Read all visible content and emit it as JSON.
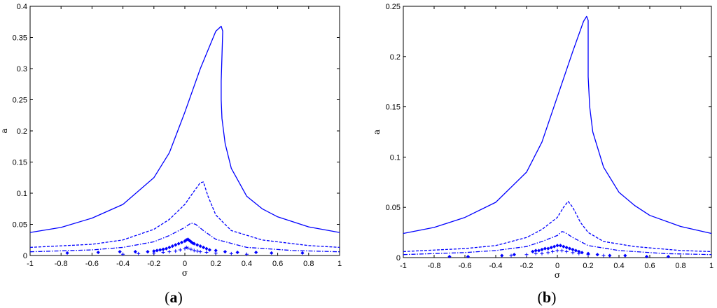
{
  "chart_data": [
    {
      "type": "line",
      "panel_label": "a",
      "xlabel": "σ",
      "ylabel": "a",
      "xlim": [
        -1,
        1
      ],
      "ylim": [
        0,
        0.4
      ],
      "x_ticks": [
        "-1",
        "-0.8",
        "-0.6",
        "-0.4",
        "-0.2",
        "0",
        "0.2",
        "0.4",
        "0.6",
        "0.8",
        "1"
      ],
      "y_ticks": [
        "0",
        "0.05",
        "0.1",
        "0.15",
        "0.2",
        "0.25",
        "0.3",
        "0.35",
        "0.4"
      ],
      "grid": false,
      "color": "#0000ff",
      "series": [
        {
          "style": "solid",
          "points": [
            [
              -1,
              0.037
            ],
            [
              -0.8,
              0.045
            ],
            [
              -0.6,
              0.06
            ],
            [
              -0.4,
              0.082
            ],
            [
              -0.2,
              0.125
            ],
            [
              -0.1,
              0.165
            ],
            [
              0,
              0.23
            ],
            [
              0.1,
              0.3
            ],
            [
              0.2,
              0.36
            ],
            [
              0.235,
              0.368
            ],
            [
              0.245,
              0.36
            ],
            [
              0.24,
              0.32
            ],
            [
              0.235,
              0.28
            ],
            [
              0.235,
              0.25
            ],
            [
              0.24,
              0.22
            ],
            [
              0.26,
              0.18
            ],
            [
              0.3,
              0.14
            ],
            [
              0.4,
              0.095
            ],
            [
              0.5,
              0.075
            ],
            [
              0.6,
              0.062
            ],
            [
              0.8,
              0.046
            ],
            [
              1,
              0.037
            ]
          ]
        },
        {
          "style": "dashed",
          "points": [
            [
              -1,
              0.013
            ],
            [
              -0.6,
              0.018
            ],
            [
              -0.4,
              0.025
            ],
            [
              -0.2,
              0.042
            ],
            [
              -0.1,
              0.058
            ],
            [
              0,
              0.082
            ],
            [
              0.05,
              0.1
            ],
            [
              0.1,
              0.117
            ],
            [
              0.12,
              0.118
            ],
            [
              0.15,
              0.095
            ],
            [
              0.2,
              0.065
            ],
            [
              0.3,
              0.04
            ],
            [
              0.5,
              0.025
            ],
            [
              0.8,
              0.016
            ],
            [
              1,
              0.013
            ]
          ]
        },
        {
          "style": "dashdot",
          "points": [
            [
              -1,
              0.006
            ],
            [
              -0.6,
              0.009
            ],
            [
              -0.4,
              0.013
            ],
            [
              -0.2,
              0.022
            ],
            [
              -0.1,
              0.032
            ],
            [
              0,
              0.045
            ],
            [
              0.04,
              0.052
            ],
            [
              0.07,
              0.05
            ],
            [
              0.12,
              0.04
            ],
            [
              0.2,
              0.026
            ],
            [
              0.4,
              0.013
            ],
            [
              0.7,
              0.008
            ],
            [
              1,
              0.006
            ]
          ]
        },
        {
          "style": "diamond",
          "points": [
            [
              -0.76,
              0.004
            ],
            [
              -0.56,
              0.005
            ],
            [
              -0.42,
              0.006
            ],
            [
              -0.32,
              0.006
            ],
            [
              -0.24,
              0.006
            ],
            [
              -0.2,
              0.007
            ],
            [
              -0.18,
              0.008
            ],
            [
              -0.16,
              0.009
            ],
            [
              -0.14,
              0.01
            ],
            [
              -0.12,
              0.011
            ],
            [
              -0.1,
              0.013
            ],
            [
              -0.08,
              0.015
            ],
            [
              -0.06,
              0.017
            ],
            [
              -0.04,
              0.019
            ],
            [
              -0.02,
              0.021
            ],
            [
              0,
              0.023
            ],
            [
              0.01,
              0.025
            ],
            [
              0.02,
              0.026
            ],
            [
              0.03,
              0.024
            ],
            [
              0.04,
              0.022
            ],
            [
              0.05,
              0.02
            ],
            [
              0.06,
              0.019
            ],
            [
              0.08,
              0.017
            ],
            [
              0.1,
              0.015
            ],
            [
              0.12,
              0.013
            ],
            [
              0.14,
              0.011
            ],
            [
              0.16,
              0.009
            ],
            [
              0.2,
              0.008
            ],
            [
              0.26,
              0.006
            ],
            [
              0.34,
              0.005
            ],
            [
              0.46,
              0.005
            ],
            [
              0.56,
              0.004
            ],
            [
              0.76,
              0.004
            ]
          ]
        },
        {
          "style": "plus",
          "points": [
            [
              -0.4,
              0.002
            ],
            [
              -0.3,
              0.003
            ],
            [
              -0.2,
              0.004
            ],
            [
              -0.14,
              0.005
            ],
            [
              -0.1,
              0.006
            ],
            [
              -0.06,
              0.007
            ],
            [
              -0.03,
              0.009
            ],
            [
              0,
              0.011
            ],
            [
              0.01,
              0.013
            ],
            [
              0.02,
              0.012
            ],
            [
              0.04,
              0.01
            ],
            [
              0.06,
              0.008
            ],
            [
              0.08,
              0.007
            ],
            [
              0.1,
              0.006
            ],
            [
              0.14,
              0.005
            ],
            [
              0.2,
              0.004
            ],
            [
              0.3,
              0.003
            ],
            [
              0.4,
              0.002
            ]
          ]
        }
      ]
    },
    {
      "type": "line",
      "panel_label": "b",
      "xlabel": "σ",
      "ylabel": "a",
      "xlim": [
        -1,
        1
      ],
      "ylim": [
        0,
        0.25
      ],
      "x_ticks": [
        "-1",
        "-0.8",
        "-0.6",
        "-0.4",
        "-0.2",
        "0",
        "0.2",
        "0.4",
        "0.6",
        "0.8",
        "1"
      ],
      "y_ticks": [
        "0",
        "0.05",
        "0.1",
        "0.15",
        "0.2",
        "0.25"
      ],
      "grid": false,
      "color": "#0000ff",
      "series": [
        {
          "style": "solid",
          "points": [
            [
              -1,
              0.024
            ],
            [
              -0.8,
              0.03
            ],
            [
              -0.6,
              0.04
            ],
            [
              -0.4,
              0.055
            ],
            [
              -0.2,
              0.085
            ],
            [
              -0.1,
              0.115
            ],
            [
              0,
              0.16
            ],
            [
              0.1,
              0.205
            ],
            [
              0.17,
              0.235
            ],
            [
              0.19,
              0.24
            ],
            [
              0.2,
              0.236
            ],
            [
              0.2,
              0.21
            ],
            [
              0.2,
              0.18
            ],
            [
              0.21,
              0.15
            ],
            [
              0.23,
              0.125
            ],
            [
              0.3,
              0.09
            ],
            [
              0.4,
              0.065
            ],
            [
              0.5,
              0.052
            ],
            [
              0.6,
              0.042
            ],
            [
              0.8,
              0.031
            ],
            [
              1,
              0.024
            ]
          ]
        },
        {
          "style": "dashed",
          "points": [
            [
              -1,
              0.006
            ],
            [
              -0.6,
              0.009
            ],
            [
              -0.4,
              0.012
            ],
            [
              -0.2,
              0.02
            ],
            [
              -0.1,
              0.028
            ],
            [
              0,
              0.04
            ],
            [
              0.04,
              0.05
            ],
            [
              0.07,
              0.056
            ],
            [
              0.1,
              0.05
            ],
            [
              0.15,
              0.035
            ],
            [
              0.2,
              0.025
            ],
            [
              0.3,
              0.016
            ],
            [
              0.5,
              0.011
            ],
            [
              0.8,
              0.007
            ],
            [
              1,
              0.006
            ]
          ]
        },
        {
          "style": "dashdot",
          "points": [
            [
              -1,
              0.003
            ],
            [
              -0.6,
              0.005
            ],
            [
              -0.4,
              0.007
            ],
            [
              -0.2,
              0.011
            ],
            [
              -0.1,
              0.016
            ],
            [
              0,
              0.022
            ],
            [
              0.03,
              0.026
            ],
            [
              0.05,
              0.025
            ],
            [
              0.1,
              0.02
            ],
            [
              0.2,
              0.012
            ],
            [
              0.4,
              0.007
            ],
            [
              0.7,
              0.004
            ],
            [
              1,
              0.003
            ]
          ]
        },
        {
          "style": "diamond",
          "points": [
            [
              -0.7,
              0.001
            ],
            [
              -0.58,
              0.001
            ],
            [
              -0.36,
              0.002
            ],
            [
              -0.28,
              0.003
            ],
            [
              -0.16,
              0.006
            ],
            [
              -0.14,
              0.007
            ],
            [
              -0.12,
              0.007
            ],
            [
              -0.1,
              0.008
            ],
            [
              -0.08,
              0.009
            ],
            [
              -0.06,
              0.009
            ],
            [
              -0.04,
              0.01
            ],
            [
              -0.02,
              0.011
            ],
            [
              0,
              0.012
            ],
            [
              0.02,
              0.012
            ],
            [
              0.04,
              0.011
            ],
            [
              0.06,
              0.01
            ],
            [
              0.08,
              0.009
            ],
            [
              0.1,
              0.008
            ],
            [
              0.12,
              0.007
            ],
            [
              0.14,
              0.006
            ],
            [
              0.16,
              0.005
            ],
            [
              0.2,
              0.004
            ],
            [
              0.26,
              0.003
            ],
            [
              0.34,
              0.002
            ],
            [
              0.44,
              0.002
            ],
            [
              0.58,
              0.001
            ],
            [
              0.72,
              0.001
            ]
          ]
        },
        {
          "style": "plus",
          "points": [
            [
              -0.3,
              0.002
            ],
            [
              -0.2,
              0.003
            ],
            [
              -0.14,
              0.004
            ],
            [
              -0.1,
              0.004
            ],
            [
              -0.06,
              0.005
            ],
            [
              -0.03,
              0.006
            ],
            [
              0,
              0.007
            ],
            [
              0.03,
              0.007
            ],
            [
              0.06,
              0.006
            ],
            [
              0.1,
              0.005
            ],
            [
              0.14,
              0.004
            ],
            [
              0.2,
              0.003
            ],
            [
              0.3,
              0.002
            ]
          ]
        }
      ]
    }
  ]
}
